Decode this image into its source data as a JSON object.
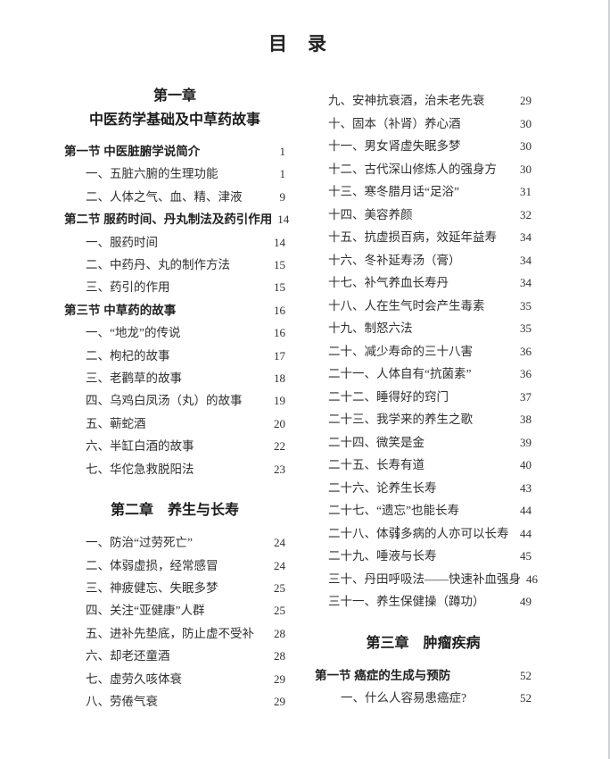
{
  "page": {
    "title": "目　录"
  },
  "columns": {
    "left": {
      "entries": [
        {
          "type": "chapter",
          "lines": [
            "第一章",
            "中医药学基础及中草药故事"
          ]
        },
        {
          "type": "section",
          "label": "第一节 中医脏腑学说简介",
          "page": "1"
        },
        {
          "type": "item",
          "label": "一、五脏六腑的生理功能",
          "page": "1"
        },
        {
          "type": "item",
          "label": "二、人体之气、血、精、津液",
          "page": "9"
        },
        {
          "type": "section",
          "label": "第二节 服药时间、丹丸制法及药引作用",
          "page": "14"
        },
        {
          "type": "item",
          "label": "一、服药时间",
          "page": "14"
        },
        {
          "type": "item",
          "label": "二、中药丹、丸的制作方法",
          "page": "15"
        },
        {
          "type": "item",
          "label": "三、药引的作用",
          "page": "15"
        },
        {
          "type": "section",
          "label": "第三节 中草药的故事",
          "page": "16"
        },
        {
          "type": "item",
          "label": "一、“地龙”的传说",
          "page": "16"
        },
        {
          "type": "item",
          "label": "二、枸杞的故事",
          "page": "17"
        },
        {
          "type": "item",
          "label": "三、老鹳草的故事",
          "page": "18"
        },
        {
          "type": "item",
          "label": "四、乌鸡白凤汤（丸）的故事",
          "page": "19"
        },
        {
          "type": "item",
          "label": "五、蕲蛇酒",
          "page": "20"
        },
        {
          "type": "item",
          "label": "六、半缸白酒的故事",
          "page": "22"
        },
        {
          "type": "item",
          "label": "七、华佗急救脱阳法",
          "page": "23"
        },
        {
          "type": "chapter",
          "lines": [
            "第二章　养生与长寿"
          ]
        },
        {
          "type": "item",
          "label": "一、防治“过劳死亡”",
          "page": "24"
        },
        {
          "type": "item",
          "label": "二、体弱虚损，经常感冒",
          "page": "24"
        },
        {
          "type": "item",
          "label": "三、神疲健忘、失眠多梦",
          "page": "25"
        },
        {
          "type": "item",
          "label": "四、关注“亚健康”人群",
          "page": "25"
        },
        {
          "type": "item",
          "label": "五、进补先垫底，防止虚不受补",
          "page": "28"
        },
        {
          "type": "item",
          "label": "六、却老还童酒",
          "page": "28"
        },
        {
          "type": "item",
          "label": "七、虚劳久咳体衰",
          "page": "29"
        },
        {
          "type": "item",
          "label": "八、劳倦气衰",
          "page": "29"
        }
      ]
    },
    "right": {
      "entries": [
        {
          "type": "item",
          "label": "九、安神抗衰酒，治未老先衰",
          "page": "29"
        },
        {
          "type": "item",
          "label": "十、固本（补肾）养心酒",
          "page": "30"
        },
        {
          "type": "item",
          "label": "十一、男女肾虚失眠多梦",
          "page": "30"
        },
        {
          "type": "item",
          "label": "十二、古代深山修炼人的强身方",
          "page": "30"
        },
        {
          "type": "item",
          "label": "十三、寒冬腊月话“足浴”",
          "page": "31"
        },
        {
          "type": "item",
          "label": "十四、美容养颜",
          "page": "32"
        },
        {
          "type": "item",
          "label": "十五、抗虚损百病，效延年益寿",
          "page": "34"
        },
        {
          "type": "item",
          "label": "十六、冬补延寿汤（膏）",
          "page": "34"
        },
        {
          "type": "item",
          "label": "十七、补气养血长寿丹",
          "page": "34"
        },
        {
          "type": "item",
          "label": "十八、人在生气时会产生毒素",
          "page": "35"
        },
        {
          "type": "item",
          "label": "十九、制怒六法",
          "page": "35"
        },
        {
          "type": "item",
          "label": "二十、减少寿命的三十八害",
          "page": "36"
        },
        {
          "type": "item",
          "label": "二十一、人体自有“抗菌素”",
          "page": "36"
        },
        {
          "type": "item",
          "label": "二十二、睡得好的窍门",
          "page": "37"
        },
        {
          "type": "item",
          "label": "二十三、我学来的养生之歌",
          "page": "38"
        },
        {
          "type": "item",
          "label": "二十四、微笑是金",
          "page": "39"
        },
        {
          "type": "item",
          "label": "二十五、长寿有道",
          "page": "40"
        },
        {
          "type": "item",
          "label": "二十六、论养生长寿",
          "page": "43"
        },
        {
          "type": "item",
          "label": "二十七、“遗忘”也能长寿",
          "page": "44"
        },
        {
          "type": "item",
          "label": "二十八、体弱多病的人亦可以长寿",
          "page": "44"
        },
        {
          "type": "item",
          "label": "二十九、唾液与长寿",
          "page": "45"
        },
        {
          "type": "item",
          "label": "三十、丹田呼吸法——快速补血强身",
          "page": "46"
        },
        {
          "type": "item",
          "label": "三十一、养生保健操（蹲功）",
          "page": "49"
        },
        {
          "type": "chapter",
          "lines": [
            "第三章　肿瘤疾病"
          ]
        },
        {
          "type": "section",
          "label": "第一节 癌症的生成与预防",
          "page": "52"
        },
        {
          "type": "item-deep",
          "label": "一、什么人容易患癌症?",
          "page": "52"
        }
      ]
    }
  }
}
